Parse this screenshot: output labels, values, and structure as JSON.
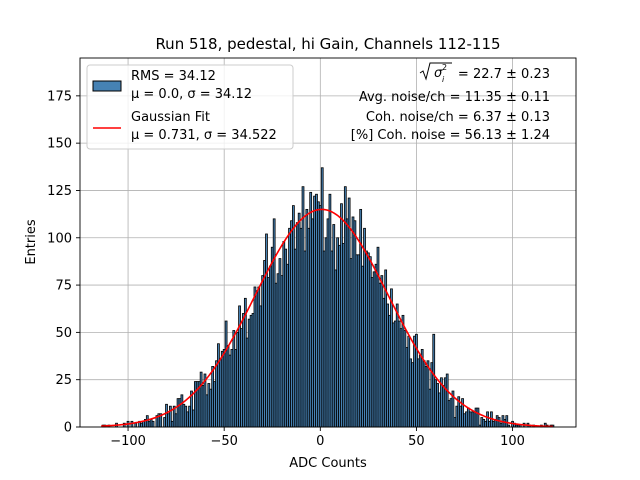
{
  "chart_data": {
    "type": "bar",
    "title": "Run 518, pedestal, hi Gain, Channels 112-115",
    "xlabel": "ADC Counts",
    "ylabel": "Entries",
    "xlim": [
      -125,
      133
    ],
    "ylim": [
      0,
      195
    ],
    "xticks": [
      -100,
      -50,
      0,
      50,
      100
    ],
    "xtick_labels": [
      "−100",
      "−50",
      "0",
      "50",
      "100"
    ],
    "yticks": [
      0,
      25,
      50,
      75,
      100,
      125,
      150,
      175
    ],
    "ytick_labels": [
      "0",
      "25",
      "50",
      "75",
      "100",
      "125",
      "150",
      "175"
    ],
    "grid": true,
    "legend_position": "top-left",
    "colors": {
      "bar_fill": "#4682b4",
      "bar_edge": "#000000",
      "fit_line": "#ff0000",
      "grid": "#b0b0b0"
    },
    "legend": {
      "histogram_line1": "RMS = 34.12",
      "histogram_line2": "μ = 0.0, σ = 34.12",
      "fit_line1": "Gaussian Fit",
      "fit_line2": "μ = 0.731, σ = 34.522"
    },
    "annotations": {
      "sigma_value": " = 22.7 ± 0.23",
      "avg_noise": "Avg. noise/ch = 11.35 ± 0.11",
      "coh_noise": "Coh. noise/ch = 6.37 ± 0.13",
      "coh_percent": "[%] Coh. noise = 56.13 ± 1.24"
    },
    "histogram": {
      "bin_start": -114,
      "bin_end": 121,
      "amplitude": 115,
      "mean": 0.731,
      "sigma": 34.522,
      "seed": 518
    },
    "series": [
      {
        "name": "RMS = 34.12",
        "kind": "histogram"
      },
      {
        "name": "Gaussian Fit",
        "kind": "line",
        "amplitude": 115,
        "mean": 0.731,
        "sigma": 34.522
      }
    ]
  }
}
